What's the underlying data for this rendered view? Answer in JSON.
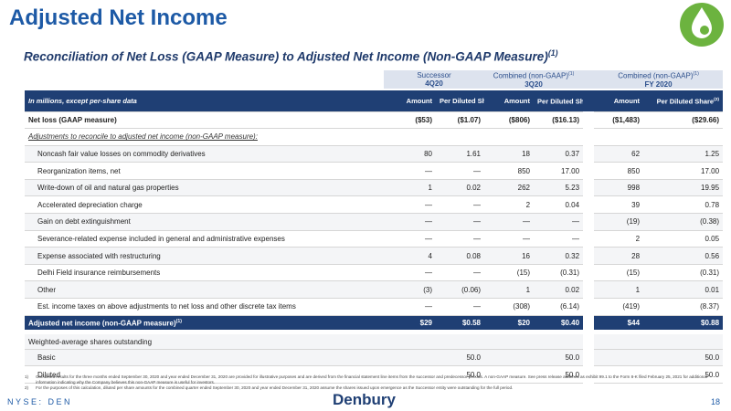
{
  "header": {
    "title": "Adjusted Net Income",
    "subtitle": "Reconciliation of Net Loss (GAAP Measure) to Adjusted Net Income (Non-GAAP Measure)",
    "subtitle_note": "(1)"
  },
  "table": {
    "group_headers": [
      {
        "line1": "Successor",
        "line2": "4Q20"
      },
      {
        "line1": "Combined (non-GAAP)",
        "note": "(1)",
        "line2": "3Q20"
      },
      {
        "line1": "Combined (non-GAAP)",
        "note": "(1)",
        "line2": "FY 2020"
      }
    ],
    "column_headers": [
      {
        "text": "In millions, except per-share data"
      },
      {
        "text": "Amount"
      },
      {
        "text": "Per Diluted Share"
      },
      {
        "text": "Amount"
      },
      {
        "text": "Per Diluted Share",
        "note": "(2)"
      },
      {
        "text": "Amount"
      },
      {
        "text": "Per Diluted Share",
        "note": "(2)"
      }
    ],
    "rows": [
      {
        "label": "Net loss (GAAP measure)",
        "style": "bold",
        "cells": [
          "($53)",
          "($1.07)",
          "($806)",
          "($16.13)",
          "($1,483)",
          "($29.66)"
        ]
      },
      {
        "label": "Adjustments to reconcile to adjusted net income (non-GAAP measure):",
        "style": "section",
        "cells": [
          null,
          null,
          null,
          null,
          null,
          null
        ]
      },
      {
        "label": "Noncash fair value losses on commodity derivatives",
        "style": "item",
        "cells": [
          "80",
          "1.61",
          "18",
          "0.37",
          "62",
          "1.25"
        ]
      },
      {
        "label": "Reorganization items, net",
        "style": "item",
        "cells": [
          "—",
          "—",
          "850",
          "17.00",
          "850",
          "17.00"
        ]
      },
      {
        "label": "Write-down of oil and natural gas properties",
        "style": "item",
        "cells": [
          "1",
          "0.02",
          "262",
          "5.23",
          "998",
          "19.95"
        ]
      },
      {
        "label": "Accelerated depreciation charge",
        "style": "item",
        "cells": [
          "—",
          "—",
          "2",
          "0.04",
          "39",
          "0.78"
        ]
      },
      {
        "label": "Gain on debt extinguishment",
        "style": "item",
        "cells": [
          "—",
          "—",
          "—",
          "—",
          "(19)",
          "(0.38)"
        ]
      },
      {
        "label": "Severance-related expense included in general and administrative expenses",
        "style": "item",
        "cells": [
          "—",
          "—",
          "—",
          "—",
          "2",
          "0.05"
        ]
      },
      {
        "label": "Expense associated with restructuring",
        "style": "item",
        "cells": [
          "4",
          "0.08",
          "16",
          "0.32",
          "28",
          "0.56"
        ]
      },
      {
        "label": "Delhi Field insurance reimbursements",
        "style": "item",
        "cells": [
          "—",
          "—",
          "(15)",
          "(0.31)",
          "(15)",
          "(0.31)"
        ]
      },
      {
        "label": "Other",
        "style": "item",
        "cells": [
          "(3)",
          "(0.06)",
          "1",
          "0.02",
          "1",
          "0.01"
        ]
      },
      {
        "label": "Est. income taxes on above adjustments to net loss and other discrete tax items",
        "style": "item",
        "cells": [
          "—",
          "—",
          "(308)",
          "(6.14)",
          "(419)",
          "(8.37)"
        ]
      },
      {
        "label": "Adjusted net income (non-GAAP measure)",
        "note": "(1)",
        "style": "total",
        "cells": [
          "$29",
          "$0.58",
          "$20",
          "$0.40",
          "$44",
          "$0.88"
        ]
      },
      {
        "label": "Weighted-average shares outstanding",
        "style": "gap-head",
        "cells": [
          null,
          null,
          null,
          null,
          null,
          null
        ]
      },
      {
        "label": "Basic",
        "style": "item",
        "cells": [
          null,
          "50.0",
          null,
          "50.0",
          null,
          "50.0"
        ]
      },
      {
        "label": "Diluted",
        "style": "item",
        "cells": [
          null,
          "50.0",
          null,
          "50.0",
          null,
          "50.0"
        ]
      }
    ]
  },
  "footnotes": [
    {
      "mark": "1)",
      "text": "Combined results for the three months ended September 30, 2020 and year ended December 31, 2020 are provided for illustrative purposes and are derived from the financial statement line items from the successor and predecessor periods. A non-GAAP measure. See press release attached as exhibit 99.1 to the Form 8-K filed February 25, 2021 for additional information indicating why the Company believes this non-GAAP measure is useful for investors."
    },
    {
      "mark": "2)",
      "text": "For the purposes of this calculation, diluted per share amounts for the combined quarter ended September 30, 2020 and year ended December 31, 2020 assume the shares issued upon emergence as the Successor entity were outstanding for the full period."
    }
  ],
  "footer": {
    "ticker": "NYSE: DEN",
    "logo": "Denbury",
    "page": "18"
  }
}
